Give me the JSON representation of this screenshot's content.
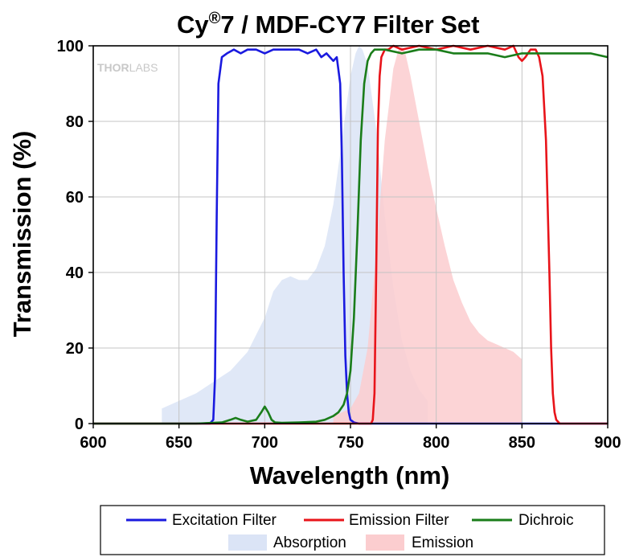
{
  "chart_data": {
    "type": "area",
    "title_main": "Cy",
    "title_sup": "®",
    "title_rest": "7 / MDF-CY7 Filter Set",
    "xlabel": "Wavelength (nm)",
    "ylabel": "Transmission (%)",
    "xlim": [
      600,
      900
    ],
    "ylim": [
      0,
      100
    ],
    "xticks": [
      "600",
      "650",
      "700",
      "750",
      "800",
      "850",
      "900"
    ],
    "yticks": [
      "0",
      "20",
      "40",
      "60",
      "80",
      "100"
    ],
    "watermark_main": "THOR",
    "watermark_rest": "LABS",
    "grid": true,
    "legend_position": "bottom",
    "series": [
      {
        "name": "Absorption",
        "kind": "area",
        "color": "#dbe4f6",
        "x": [
          640,
          650,
          660,
          670,
          680,
          690,
          700,
          705,
          710,
          715,
          720,
          725,
          730,
          735,
          740,
          745,
          750,
          753,
          755,
          757,
          760,
          765,
          770,
          775,
          780,
          785,
          790,
          795
        ],
        "y": [
          4,
          6,
          8,
          11,
          14,
          19,
          28,
          35,
          38,
          39,
          38,
          38,
          41,
          47,
          58,
          75,
          92,
          98,
          100,
          99,
          95,
          78,
          55,
          36,
          22,
          14,
          9,
          6
        ]
      },
      {
        "name": "Emission",
        "kind": "area",
        "color": "#fbcdcf",
        "x": [
          740,
          750,
          755,
          760,
          765,
          770,
          775,
          778,
          780,
          782,
          785,
          790,
          795,
          800,
          805,
          810,
          815,
          820,
          825,
          830,
          835,
          840,
          845,
          850
        ],
        "y": [
          2,
          4,
          8,
          20,
          45,
          75,
          94,
          99,
          100,
          98,
          92,
          80,
          68,
          57,
          47,
          38,
          32,
          27,
          24,
          22,
          21,
          20,
          19,
          17
        ]
      },
      {
        "name": "Excitation Filter",
        "kind": "line",
        "color": "#1a1adf",
        "x": [
          600,
          668,
          670,
          671,
          672,
          673,
          675,
          678,
          682,
          686,
          690,
          695,
          700,
          705,
          710,
          715,
          720,
          725,
          730,
          733,
          736,
          738,
          740,
          742,
          744,
          745,
          746,
          747,
          748,
          749,
          750,
          752,
          755,
          900
        ],
        "y": [
          0,
          0,
          1,
          12,
          55,
          90,
          97,
          98,
          99,
          98,
          99,
          99,
          98,
          99,
          99,
          99,
          99,
          98,
          99,
          97,
          98,
          97,
          96,
          97,
          90,
          70,
          40,
          18,
          8,
          3,
          1,
          0.3,
          0,
          0
        ]
      },
      {
        "name": "Emission Filter",
        "kind": "line",
        "color": "#e8141a",
        "x": [
          600,
          762,
          763,
          764,
          765,
          766,
          767,
          768,
          770,
          772,
          775,
          780,
          790,
          800,
          810,
          820,
          830,
          840,
          845,
          848,
          850,
          852,
          855,
          858,
          860,
          862,
          864,
          866,
          867,
          868,
          869,
          870,
          872,
          875,
          900
        ],
        "y": [
          0,
          0,
          1,
          8,
          40,
          78,
          92,
          97,
          99,
          99,
          100,
          99,
          100,
          99,
          100,
          99,
          100,
          99,
          100,
          97,
          96,
          97,
          99,
          99,
          97,
          92,
          75,
          40,
          20,
          8,
          3,
          1,
          0,
          0,
          0
        ]
      },
      {
        "name": "Dichroic",
        "kind": "line",
        "color": "#1a7d1a",
        "x": [
          600,
          660,
          675,
          680,
          683,
          686,
          690,
          695,
          698,
          700,
          702,
          704,
          706,
          710,
          720,
          730,
          735,
          740,
          743,
          746,
          748,
          750,
          752,
          754,
          756,
          758,
          760,
          762,
          764,
          766,
          768,
          770,
          780,
          790,
          800,
          810,
          820,
          830,
          840,
          850,
          860,
          870,
          880,
          890,
          900
        ],
        "y": [
          0,
          0,
          0.3,
          1,
          1.5,
          1,
          0.5,
          1,
          3,
          4.5,
          3,
          1,
          0.3,
          0.2,
          0.3,
          0.5,
          1,
          2,
          3,
          5,
          8,
          14,
          28,
          50,
          75,
          90,
          96,
          98,
          99,
          99,
          99,
          99,
          98,
          99,
          99,
          98,
          98,
          98,
          97,
          98,
          98,
          98,
          98,
          98,
          97
        ]
      }
    ]
  },
  "legend": {
    "row1": [
      "Excitation Filter",
      "Emission Filter",
      "Dichroic"
    ],
    "row2": [
      "Absorption",
      "Emission"
    ]
  }
}
